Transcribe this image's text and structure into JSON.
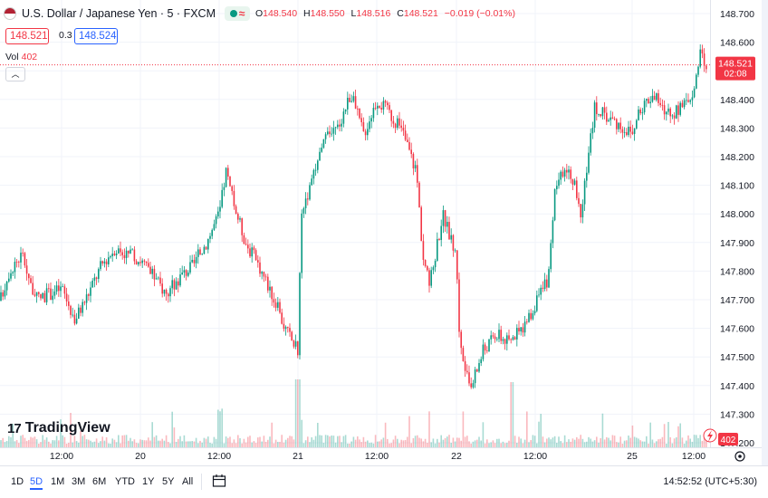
{
  "legend": {
    "symbol": "U.S. Dollar / Japanese Yen · 5 · FXCM",
    "open_label": "O",
    "open": "148.540",
    "high_label": "H",
    "high": "148.550",
    "low_label": "L",
    "low": "148.516",
    "close_label": "C",
    "close": "148.521",
    "change": "−0.019 (−0.01%)"
  },
  "quote": {
    "bid": "148.521",
    "spread": "0.3",
    "ask": "148.524"
  },
  "volume": {
    "label": "Vol",
    "value": "402"
  },
  "collapse_icon": "chevron-up-icon",
  "price_tag": {
    "price": "148.521",
    "countdown": "02:08"
  },
  "volume_tag": "402",
  "logo": {
    "mark": "17",
    "text": "TradingView"
  },
  "timeframes": [
    "1D",
    "5D",
    "1M",
    "3M",
    "6M",
    "YTD",
    "1Y",
    "5Y",
    "All"
  ],
  "active_timeframe": "5D",
  "clock": "14:52:52 (UTC+5:30)",
  "colors": {
    "up": "#089981",
    "down": "#f23645",
    "accent": "#2962ff"
  },
  "chart_data": {
    "type": "candlestick",
    "symbol": "USDJPY",
    "interval": "5",
    "y_range": [
      147.22,
      148.72
    ],
    "y_ticks": [
      "148.700",
      "148.600",
      "148.500",
      "148.400",
      "148.300",
      "148.200",
      "148.100",
      "148.000",
      "147.900",
      "147.800",
      "147.700",
      "147.600",
      "147.500",
      "147.400",
      "147.300",
      "147.200"
    ],
    "x_ticks": [
      "12:00",
      "20",
      "12:00",
      "21",
      "12:00",
      "22",
      "12:00",
      "25",
      "12:00"
    ],
    "approx_close_path": [
      {
        "x": "19 00:00",
        "y": 147.57
      },
      {
        "x": "19 02:00",
        "y": 147.65
      },
      {
        "x": "19 04:00",
        "y": 147.8
      },
      {
        "x": "19 06:00",
        "y": 147.86
      },
      {
        "x": "19 08:00",
        "y": 147.7
      },
      {
        "x": "19 10:00",
        "y": 147.72
      },
      {
        "x": "19 12:00",
        "y": 147.74
      },
      {
        "x": "19 14:00",
        "y": 147.63
      },
      {
        "x": "19 16:00",
        "y": 147.72
      },
      {
        "x": "19 18:00",
        "y": 147.82
      },
      {
        "x": "19 20:00",
        "y": 147.88
      },
      {
        "x": "20 00:00",
        "y": 147.84
      },
      {
        "x": "20 02:00",
        "y": 147.78
      },
      {
        "x": "20 04:00",
        "y": 147.72
      },
      {
        "x": "20 06:00",
        "y": 147.78
      },
      {
        "x": "20 08:00",
        "y": 147.82
      },
      {
        "x": "20 10:00",
        "y": 147.9
      },
      {
        "x": "20 12:00",
        "y": 148.0
      },
      {
        "x": "20 13:00",
        "y": 148.15
      },
      {
        "x": "20 14:00",
        "y": 148.05
      },
      {
        "x": "20 16:00",
        "y": 147.9
      },
      {
        "x": "20 18:00",
        "y": 147.82
      },
      {
        "x": "20 20:00",
        "y": 147.72
      },
      {
        "x": "20 22:00",
        "y": 147.6
      },
      {
        "x": "21 00:00",
        "y": 147.52
      },
      {
        "x": "21 00:30",
        "y": 148.02
      },
      {
        "x": "21 02:00",
        "y": 148.1
      },
      {
        "x": "21 04:00",
        "y": 148.25
      },
      {
        "x": "21 06:00",
        "y": 148.3
      },
      {
        "x": "21 08:00",
        "y": 148.42
      },
      {
        "x": "21 10:00",
        "y": 148.28
      },
      {
        "x": "21 12:00",
        "y": 148.4
      },
      {
        "x": "21 14:00",
        "y": 148.35
      },
      {
        "x": "21 16:00",
        "y": 148.28
      },
      {
        "x": "21 18:00",
        "y": 148.15
      },
      {
        "x": "21 19:00",
        "y": 147.85
      },
      {
        "x": "21 20:00",
        "y": 147.75
      },
      {
        "x": "21 22:00",
        "y": 148.0
      },
      {
        "x": "22 00:00",
        "y": 147.85
      },
      {
        "x": "22 00:30",
        "y": 147.55
      },
      {
        "x": "22 02:00",
        "y": 147.38
      },
      {
        "x": "22 04:00",
        "y": 147.52
      },
      {
        "x": "22 06:00",
        "y": 147.58
      },
      {
        "x": "22 08:00",
        "y": 147.55
      },
      {
        "x": "22 10:00",
        "y": 147.6
      },
      {
        "x": "22 12:00",
        "y": 147.68
      },
      {
        "x": "22 14:00",
        "y": 147.78
      },
      {
        "x": "22 15:00",
        "y": 148.08
      },
      {
        "x": "22 17:00",
        "y": 148.18
      },
      {
        "x": "22 19:00",
        "y": 148.0
      },
      {
        "x": "22 21:00",
        "y": 148.38
      },
      {
        "x": "23 00:00",
        "y": 148.3
      },
      {
        "x": "23 02:00",
        "y": 148.22
      },
      {
        "x": "23 04:00",
        "y": 148.25
      },
      {
        "x": "23 06:00",
        "y": 148.3
      },
      {
        "x": "23 08:00",
        "y": 148.05
      },
      {
        "x": "23 10:00",
        "y": 148.22
      },
      {
        "x": "23 12:00",
        "y": 148.32
      },
      {
        "x": "23 14:00",
        "y": 148.38
      },
      {
        "x": "25 00:00",
        "y": 148.28
      },
      {
        "x": "25 02:00",
        "y": 148.38
      },
      {
        "x": "25 04:00",
        "y": 148.42
      },
      {
        "x": "25 06:00",
        "y": 148.36
      },
      {
        "x": "25 08:00",
        "y": 148.35
      },
      {
        "x": "25 10:00",
        "y": 148.38
      },
      {
        "x": "25 12:00",
        "y": 148.45
      },
      {
        "x": "25 13:00",
        "y": 148.55
      },
      {
        "x": "25 14:00",
        "y": 148.52
      }
    ],
    "last_price": 148.521
  }
}
